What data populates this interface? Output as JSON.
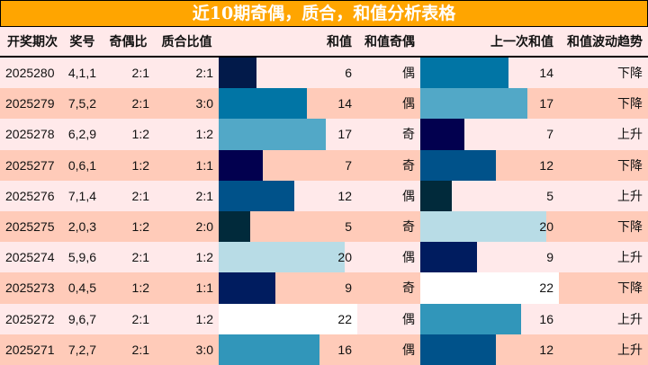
{
  "title": "近10期奇偶，质合，和值分析表格",
  "headers": [
    "开奖期次",
    "奖号",
    "奇偶比",
    "质合比值",
    "和值",
    "和值奇偶",
    "上一次和值",
    "和值波动趋势"
  ],
  "max_sum": 22,
  "value_colors": {
    "5": "#012A3B",
    "6": "#021A4A",
    "7": "#02004F",
    "9": "#001C5F",
    "12": "#00528A",
    "14": "#0175A5",
    "16": "#3196BA",
    "17": "#52A8C7",
    "20": "#B8DCE6",
    "22": "#FFFFFF"
  },
  "rows": [
    {
      "period": "2025280",
      "numbers": "4,1,1",
      "odd_even": "2:1",
      "prime_comp": "2:1",
      "sum": 6,
      "sum_parity": "偶",
      "prev_sum": 14,
      "trend": "下降"
    },
    {
      "period": "2025279",
      "numbers": "7,5,2",
      "odd_even": "2:1",
      "prime_comp": "3:0",
      "sum": 14,
      "sum_parity": "偶",
      "prev_sum": 17,
      "trend": "下降"
    },
    {
      "period": "2025278",
      "numbers": "6,2,9",
      "odd_even": "1:2",
      "prime_comp": "1:2",
      "sum": 17,
      "sum_parity": "奇",
      "prev_sum": 7,
      "trend": "上升"
    },
    {
      "period": "2025277",
      "numbers": "0,6,1",
      "odd_even": "1:2",
      "prime_comp": "1:1",
      "sum": 7,
      "sum_parity": "奇",
      "prev_sum": 12,
      "trend": "下降"
    },
    {
      "period": "2025276",
      "numbers": "7,1,4",
      "odd_even": "2:1",
      "prime_comp": "2:1",
      "sum": 12,
      "sum_parity": "偶",
      "prev_sum": 5,
      "trend": "上升"
    },
    {
      "period": "2025275",
      "numbers": "2,0,3",
      "odd_even": "1:2",
      "prime_comp": "2:0",
      "sum": 5,
      "sum_parity": "奇",
      "prev_sum": 20,
      "trend": "下降"
    },
    {
      "period": "2025274",
      "numbers": "5,9,6",
      "odd_even": "2:1",
      "prime_comp": "1:2",
      "sum": 20,
      "sum_parity": "偶",
      "prev_sum": 9,
      "trend": "上升"
    },
    {
      "period": "2025273",
      "numbers": "0,4,5",
      "odd_even": "1:2",
      "prime_comp": "1:1",
      "sum": 9,
      "sum_parity": "奇",
      "prev_sum": 22,
      "trend": "下降"
    },
    {
      "period": "2025272",
      "numbers": "9,6,7",
      "odd_even": "2:1",
      "prime_comp": "1:2",
      "sum": 22,
      "sum_parity": "偶",
      "prev_sum": 16,
      "trend": "上升"
    },
    {
      "period": "2025271",
      "numbers": "7,2,7",
      "odd_even": "2:1",
      "prime_comp": "3:0",
      "sum": 16,
      "sum_parity": "偶",
      "prev_sum": 12,
      "trend": "上升"
    }
  ]
}
